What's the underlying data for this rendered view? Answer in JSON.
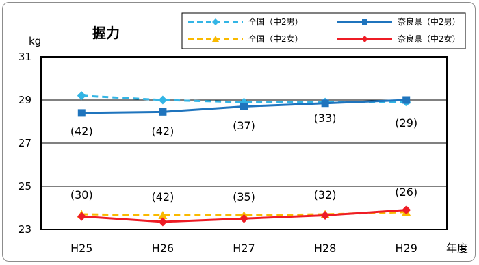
{
  "chart_data": {
    "type": "line",
    "title": "握力",
    "ylabel": "kg",
    "xlabel": "年度",
    "categories": [
      "H25",
      "H26",
      "H27",
      "H28",
      "H29"
    ],
    "ylim": [
      23,
      31
    ],
    "yticks": [
      23,
      25,
      27,
      29,
      31
    ],
    "grid": true,
    "legend_position": "top-right",
    "series": [
      {
        "name": "全国（中2男）",
        "values": [
          29.2,
          29.0,
          28.9,
          28.9,
          28.9
        ],
        "color": "#33b5e5",
        "style": "dashed",
        "marker": "diamond"
      },
      {
        "name": "奈良県（中2男）",
        "values": [
          28.4,
          28.45,
          28.7,
          28.85,
          29.0
        ],
        "color": "#1f74bd",
        "style": "solid",
        "marker": "square"
      },
      {
        "name": "全国（中2女）",
        "values": [
          23.7,
          23.65,
          23.65,
          23.7,
          23.8
        ],
        "color": "#f9b900",
        "style": "dashed",
        "marker": "triangle"
      },
      {
        "name": "奈良県（中2女）",
        "values": [
          23.6,
          23.35,
          23.5,
          23.65,
          23.9
        ],
        "color": "#ee1c25",
        "style": "solid",
        "marker": "diamond"
      }
    ],
    "annotations": {
      "boys": [
        "(42)",
        "(42)",
        "(37)",
        "(33)",
        "(29)"
      ],
      "girls": [
        "(30)",
        "(42)",
        "(35)",
        "(32)",
        "(26)"
      ]
    }
  }
}
